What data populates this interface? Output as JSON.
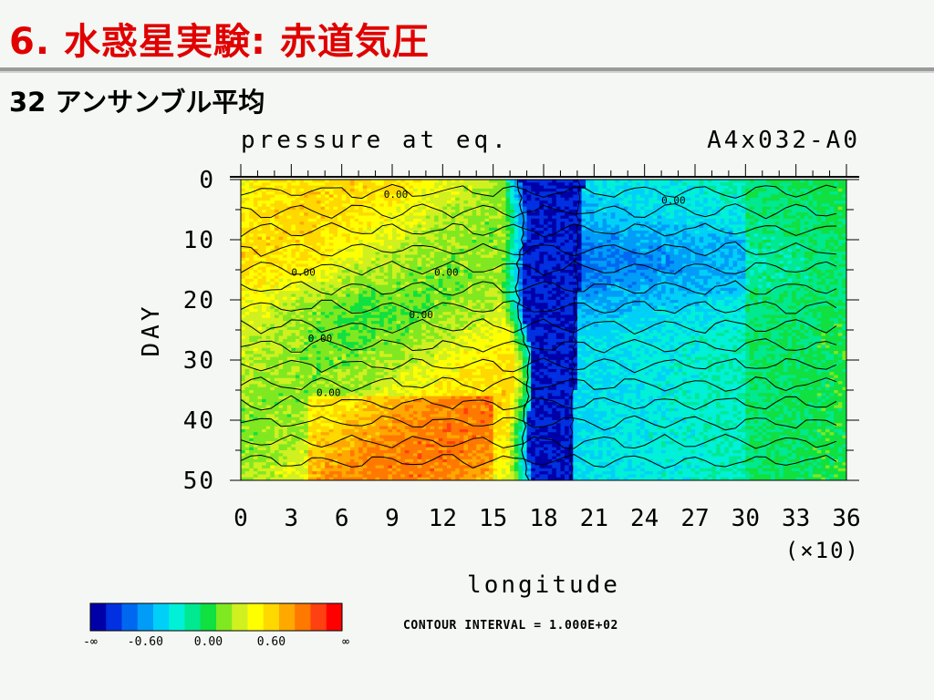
{
  "slide": {
    "title": "6. 水惑星実験: 赤道気圧",
    "subtitle": "32 アンサンブル平均"
  },
  "chart_data": {
    "type": "heatmap",
    "title": "pressure at eq.",
    "run_id": "A4x032-A0",
    "xlabel": "longitude",
    "x_scale_note": "(×10)",
    "ylabel": "DAY",
    "xlim": [
      0,
      36
    ],
    "ylim": [
      0,
      50
    ],
    "y_inverted": true,
    "x_ticks": [
      "0",
      "3",
      "6",
      "9",
      "12",
      "15",
      "18",
      "21",
      "24",
      "27",
      "30",
      "33",
      "36"
    ],
    "y_ticks": [
      "0",
      "10",
      "20",
      "30",
      "40",
      "50"
    ],
    "contour_labels": [
      {
        "text": "0.00",
        "x": 8.5,
        "y": 3
      },
      {
        "text": "0.00",
        "x": 25,
        "y": 4
      },
      {
        "text": "0.00",
        "x": 3,
        "y": 16
      },
      {
        "text": "0.00",
        "x": 11.5,
        "y": 16
      },
      {
        "text": "0.00",
        "x": 10,
        "y": 23
      },
      {
        "text": "0.00",
        "x": 4,
        "y": 27
      },
      {
        "text": "0.00",
        "x": 4.5,
        "y": 36
      }
    ],
    "contour_interval": "CONTOUR INTERVAL = 1.000E+02",
    "colorbar": {
      "colors": [
        "#0000a8",
        "#0030e0",
        "#0068f0",
        "#009cf8",
        "#00d0f8",
        "#00f0d8",
        "#00e890",
        "#10e040",
        "#80e820",
        "#d0f020",
        "#ffff00",
        "#ffd800",
        "#ffa800",
        "#ff7800",
        "#ff4010",
        "#ff0000"
      ],
      "labels": [
        "-∞",
        "-0.60",
        "0.00",
        "0.60",
        "∞"
      ]
    }
  }
}
